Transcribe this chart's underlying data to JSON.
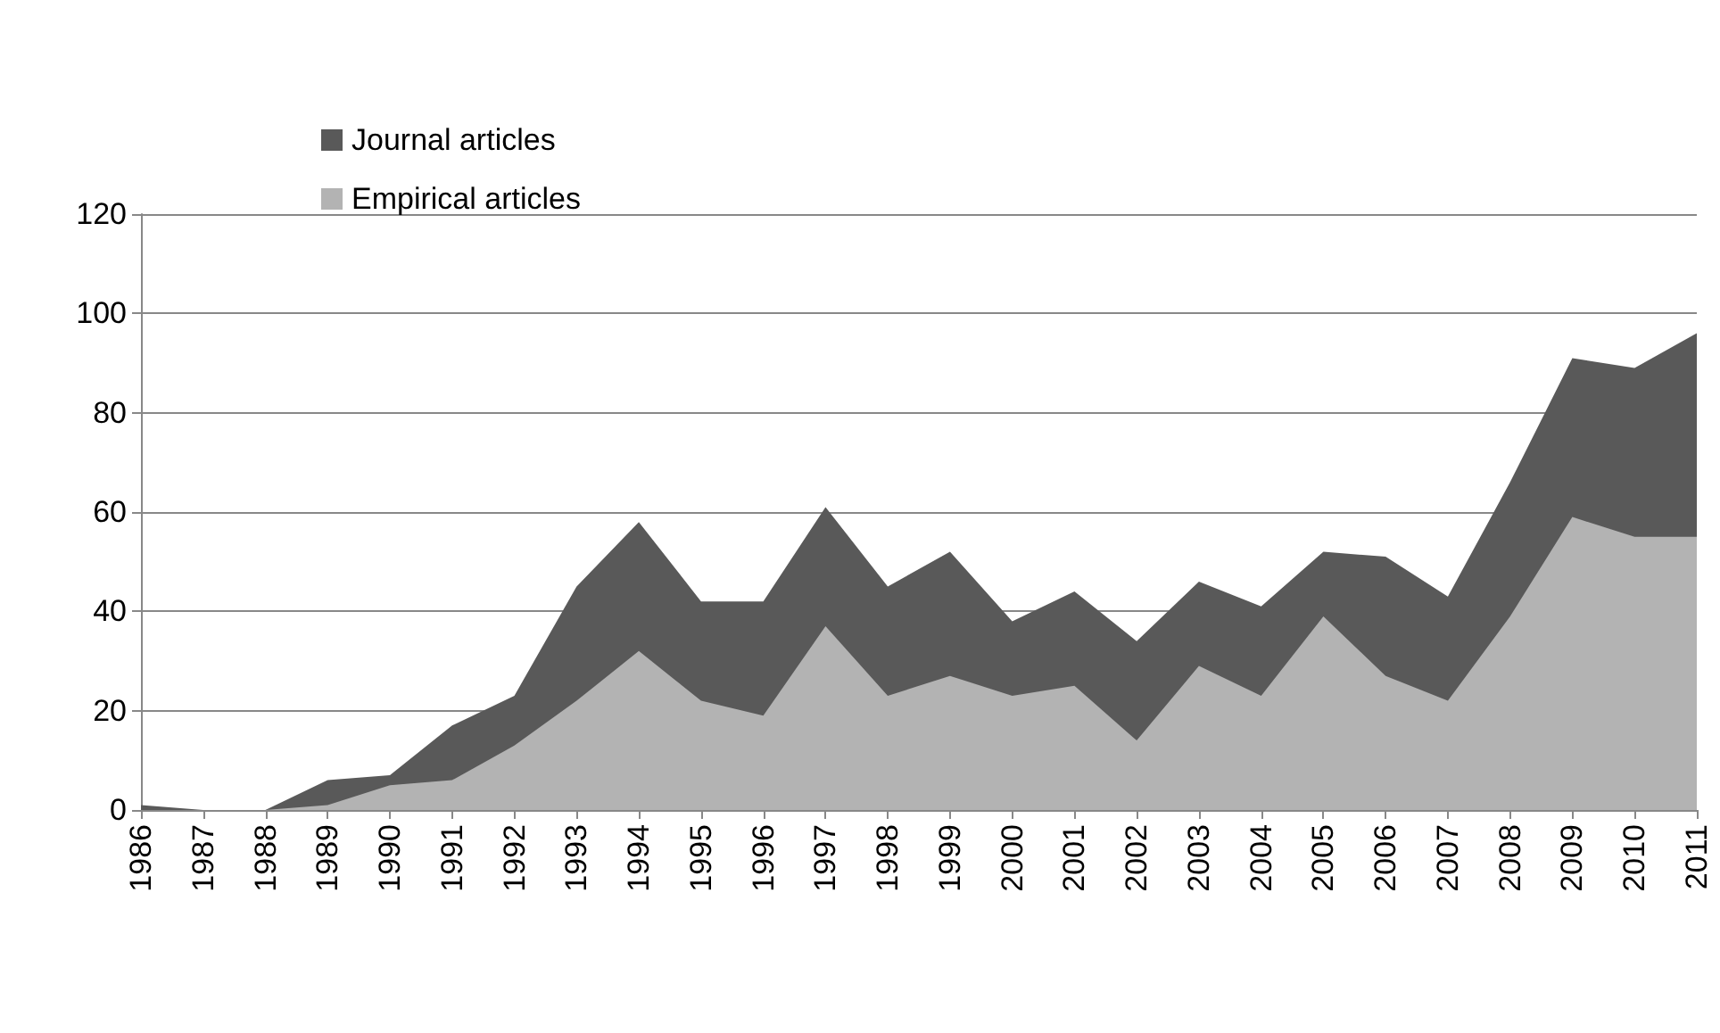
{
  "chart_data": {
    "type": "area",
    "categories": [
      "1986",
      "1987",
      "1988",
      "1989",
      "1990",
      "1991",
      "1992",
      "1993",
      "1994",
      "1995",
      "1996",
      "1997",
      "1998",
      "1999",
      "2000",
      "2001",
      "2002",
      "2003",
      "2004",
      "2005",
      "2006",
      "2007",
      "2008",
      "2009",
      "2010",
      "2011"
    ],
    "series": [
      {
        "name": "Journal articles",
        "color": "#595959",
        "values": [
          1,
          0,
          0,
          6,
          7,
          17,
          23,
          45,
          58,
          42,
          42,
          61,
          45,
          52,
          38,
          44,
          34,
          46,
          41,
          52,
          51,
          43,
          66,
          91,
          89,
          96
        ]
      },
      {
        "name": "Empirical articles",
        "color": "#b3b3b3",
        "values": [
          0,
          0,
          0,
          1,
          5,
          6,
          13,
          22,
          32,
          22,
          19,
          37,
          23,
          27,
          23,
          25,
          14,
          29,
          23,
          39,
          27,
          22,
          39,
          59,
          55,
          55
        ]
      }
    ],
    "ylim": [
      0,
      120
    ],
    "yticks": [
      0,
      20,
      40,
      60,
      80,
      100,
      120
    ],
    "grid": "y",
    "legend": "top left",
    "marker": "none"
  }
}
